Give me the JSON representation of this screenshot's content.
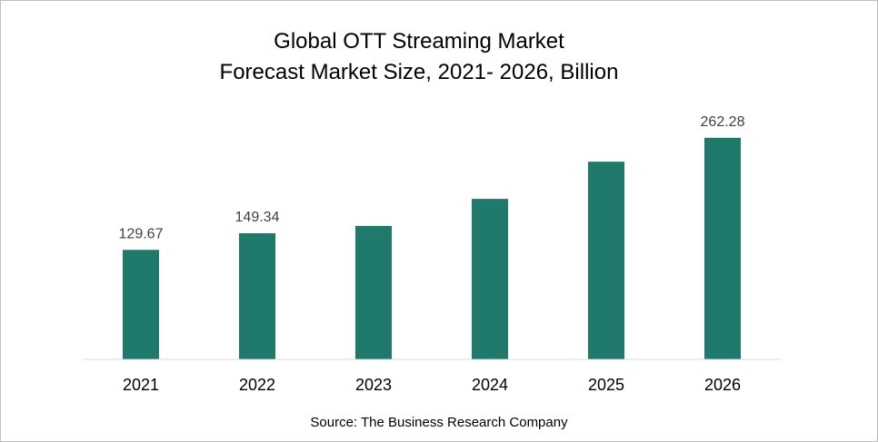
{
  "chart_data": {
    "type": "bar",
    "title": "Global OTT Streaming Market",
    "subtitle": "Forecast Market Size, 2021- 2026, Billion",
    "categories": [
      "2021",
      "2022",
      "2023",
      "2024",
      "2025",
      "2026"
    ],
    "values": [
      129.67,
      149.34,
      158,
      190,
      234,
      262.28
    ],
    "data_labels": [
      "129.67",
      "149.34",
      "",
      "",
      "",
      "262.28"
    ],
    "ylim": [
      0,
      290
    ],
    "grid": false,
    "legend": "none",
    "bar_color": "#1f7a6c",
    "axis_color": "#d9d9d9"
  },
  "footer": {
    "source": "Source: The Business Research Company"
  }
}
